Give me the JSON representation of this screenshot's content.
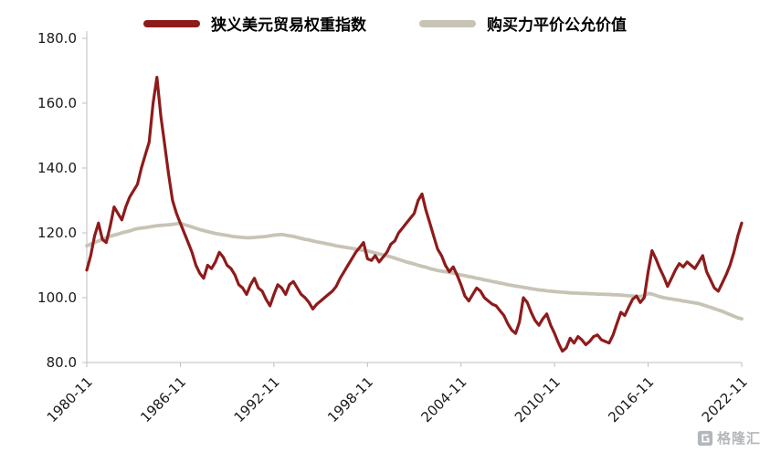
{
  "chart_data": {
    "type": "line",
    "title": "",
    "grid": false,
    "legend_position": "top",
    "style": {
      "axis_color": "#bfbfbf",
      "label_color": "#1a1a1a",
      "background": "#ffffff"
    },
    "x_axis": {
      "start": "1980-11",
      "step_months": 3,
      "tick_labels": [
        "1980-11",
        "1986-11",
        "1992-11",
        "1998-11",
        "2004-11",
        "2010-11",
        "2016-11",
        "2022-11"
      ]
    },
    "y_axis": {
      "min": 80,
      "max": 180,
      "tick_step": 20,
      "tick_labels": [
        "80.0",
        "100.0",
        "120.0",
        "140.0",
        "160.0",
        "180.0"
      ]
    },
    "series": [
      {
        "name": "狭义美元贸易权重指数",
        "color": "#8e1b1b",
        "line_width": 3.2,
        "values": [
          108.5,
          113,
          119,
          123,
          118,
          117,
          122,
          128,
          126,
          124,
          128,
          131,
          133,
          135,
          140,
          144,
          148,
          160,
          168,
          156,
          147,
          138,
          130,
          126,
          123,
          120,
          117,
          114,
          110,
          107.5,
          106,
          110,
          109,
          111,
          114,
          112.5,
          110,
          109,
          107,
          104,
          103,
          101,
          104,
          106,
          103,
          102,
          99.5,
          97.5,
          101,
          104,
          103,
          101,
          104,
          105,
          103,
          101,
          100,
          98.5,
          96.5,
          98,
          99,
          100,
          101,
          102,
          103.5,
          106,
          108,
          110,
          112,
          114,
          115.5,
          117,
          112,
          111.5,
          113,
          111,
          112.5,
          114,
          116.5,
          117.5,
          120,
          121.5,
          123,
          124.5,
          126,
          130,
          132,
          127,
          123,
          119,
          115,
          113,
          110,
          108,
          109.5,
          107,
          104,
          100.5,
          99,
          101,
          103,
          102,
          100,
          99,
          98,
          97.5,
          96,
          94.5,
          92,
          90,
          89,
          92.5,
          100,
          98.5,
          95.5,
          93,
          91.5,
          93.5,
          95,
          91.5,
          89,
          86,
          83.5,
          84.5,
          87.5,
          86,
          88,
          87,
          85.5,
          86.5,
          88,
          88.5,
          87,
          86.5,
          86,
          88.5,
          92,
          95.5,
          94.5,
          97,
          99.5,
          100.5,
          98.5,
          100,
          108,
          114.5,
          112,
          109,
          106.5,
          103.5,
          106,
          108.5,
          110.5,
          109.5,
          111,
          110,
          109,
          111,
          113,
          108,
          105.5,
          103,
          102,
          104.5,
          107,
          110,
          114,
          119,
          123
        ]
      },
      {
        "name": "购买力平价公允价值",
        "color": "#c7c4b6",
        "line_width": 3.8,
        "values": [
          116,
          116.5,
          117,
          117.5,
          118,
          118.5,
          119,
          119.3,
          119.6,
          120,
          120.3,
          120.6,
          121,
          121.3,
          121.5,
          121.6,
          121.8,
          122,
          122.2,
          122.3,
          122.4,
          122.5,
          122.6,
          122.8,
          123,
          122.5,
          122.2,
          121.8,
          121.4,
          121,
          120.7,
          120.4,
          120.1,
          119.8,
          119.6,
          119.4,
          119.2,
          119,
          118.8,
          118.7,
          118.6,
          118.5,
          118.5,
          118.6,
          118.7,
          118.8,
          118.9,
          119.1,
          119.3,
          119.4,
          119.5,
          119.3,
          119.1,
          118.9,
          118.6,
          118.3,
          118,
          117.8,
          117.5,
          117.2,
          117,
          116.8,
          116.5,
          116.3,
          116,
          115.8,
          115.6,
          115.4,
          115.2,
          115,
          114.8,
          114.6,
          114.4,
          114.1,
          113.8,
          113.5,
          113.2,
          112.9,
          112.6,
          112.2,
          111.8,
          111.4,
          111,
          110.7,
          110.4,
          110,
          109.7,
          109.4,
          109,
          108.7,
          108.4,
          108.2,
          108,
          107.8,
          107.6,
          107.3,
          107,
          106.8,
          106.5,
          106.3,
          106,
          105.8,
          105.5,
          105.3,
          105,
          104.8,
          104.5,
          104.3,
          104,
          103.8,
          103.6,
          103.4,
          103.2,
          103,
          102.8,
          102.6,
          102.4,
          102.3,
          102.1,
          102,
          101.9,
          101.8,
          101.7,
          101.6,
          101.5,
          101.4,
          101.4,
          101.3,
          101.3,
          101.2,
          101.2,
          101.1,
          101.1,
          101,
          101,
          100.9,
          100.9,
          100.8,
          100.7,
          100.6,
          100.5,
          100.4,
          100.4,
          100.6,
          101.3,
          101.1,
          100.7,
          100.3,
          100,
          99.8,
          99.6,
          99.4,
          99.2,
          99,
          98.8,
          98.6,
          98.4,
          98.2,
          97.8,
          97.4,
          97,
          96.6,
          96.2,
          95.8,
          95.3,
          94.8,
          94.3,
          93.8,
          93.5
        ]
      }
    ]
  },
  "watermark": {
    "text": "格隆汇",
    "icon": "gelonghui-logo"
  }
}
